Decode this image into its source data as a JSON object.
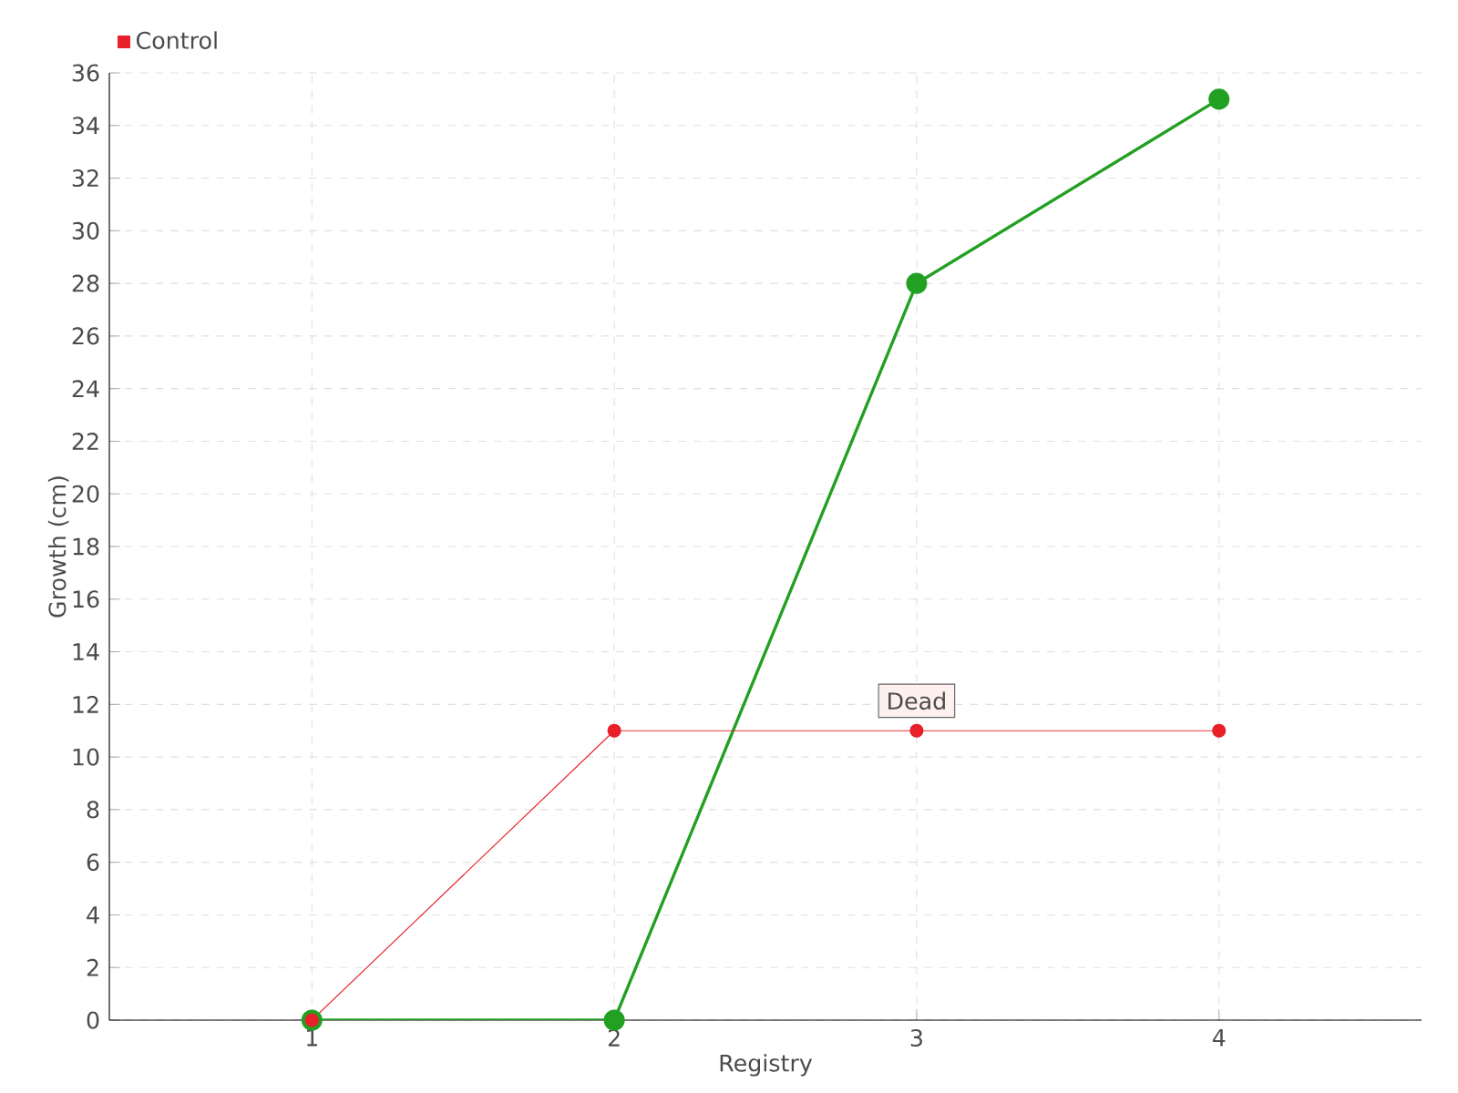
{
  "chart_data": {
    "type": "line",
    "xlabel": "Registry",
    "ylabel": "Growth (cm)",
    "categories": [
      "1",
      "2",
      "3",
      "4"
    ],
    "series": [
      {
        "color": "#22a022",
        "values": [
          0,
          0,
          28,
          35
        ]
      },
      {
        "name": "Control",
        "color": "#e8202a",
        "values": [
          0,
          11,
          11,
          11
        ]
      }
    ],
    "ylim": [
      0,
      36
    ],
    "yticks": [
      0,
      2,
      4,
      6,
      8,
      10,
      12,
      14,
      16,
      18,
      20,
      22,
      24,
      26,
      28,
      30,
      32,
      34,
      36
    ],
    "grid": true,
    "legend": "top left",
    "marker": "circle",
    "line_style": "solid",
    "annotations": [
      {
        "text": "Dead",
        "x": "3",
        "y": 11
      }
    ]
  }
}
